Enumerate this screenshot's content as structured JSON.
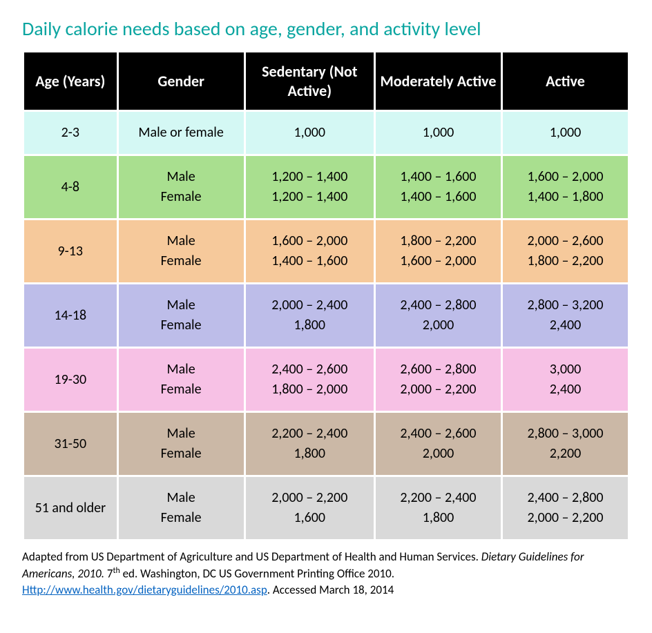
{
  "title": "Daily calorie needs based on age, gender, and activity level",
  "title_color": "#0aa5a0",
  "header_bg": "#000000",
  "header_text_color": "#ffffff",
  "columns": [
    "Age (Years)",
    "Gender",
    "Sedentary (Not Active)",
    "Moderately Active",
    "Active"
  ],
  "column_widths_pct": [
    15.5,
    21,
    21.5,
    21,
    21
  ],
  "rows": [
    {
      "bg": "#d4f8f4",
      "age": "2-3",
      "gender": [
        "Male or female"
      ],
      "sedentary": [
        "1,000"
      ],
      "moderate": [
        "1,000"
      ],
      "active": [
        "1,000"
      ]
    },
    {
      "bg": "#a9df8f",
      "age": "4-8",
      "gender": [
        "Male",
        "Female"
      ],
      "sedentary": [
        "1,200 – 1,400",
        "1,200 – 1,400"
      ],
      "moderate": [
        "1,400 – 1,600",
        "1,400 – 1,600"
      ],
      "active": [
        "1,600 – 2,000",
        "1,400 – 1,800"
      ]
    },
    {
      "bg": "#f6c99b",
      "age": "9-13",
      "gender": [
        "Male",
        "Female"
      ],
      "sedentary": [
        "1,600 – 2,000",
        "1,400 – 1,600"
      ],
      "moderate": [
        "1,800 – 2,200",
        "1,600 – 2,000"
      ],
      "active": [
        "2,000 – 2,600",
        "1,800 – 2,200"
      ]
    },
    {
      "bg": "#bdbde9",
      "age": "14-18",
      "gender": [
        "Male",
        "Female"
      ],
      "sedentary": [
        "2,000 – 2,400",
        "1,800"
      ],
      "moderate": [
        "2,400 – 2,800",
        "2,000"
      ],
      "active": [
        "2,800 – 3,200",
        "2,400"
      ]
    },
    {
      "bg": "#f7c1e5",
      "age": "19-30",
      "gender": [
        "Male",
        "Female"
      ],
      "sedentary": [
        "2,400 – 2,600",
        "1,800 – 2,000"
      ],
      "moderate": [
        "2,600 – 2,800",
        "2,000 – 2,200"
      ],
      "active": [
        "3,000",
        "2,400"
      ]
    },
    {
      "bg": "#cbb8a6",
      "age": "31-50",
      "gender": [
        "Male",
        "Female"
      ],
      "sedentary": [
        "2,200 – 2,400",
        "1,800"
      ],
      "moderate": [
        "2,400 – 2,600",
        "2,000"
      ],
      "active": [
        "2,800 – 3,000",
        "2,200"
      ]
    },
    {
      "bg": "#d9d9d9",
      "age": "51 and older",
      "gender": [
        "Male",
        "Female"
      ],
      "sedentary": [
        "2,000 – 2,200",
        "1,600"
      ],
      "moderate": [
        "2,200 – 2,400",
        "1,800"
      ],
      "active": [
        "2,400 – 2,800",
        "2,000 – 2,200"
      ]
    }
  ],
  "footnote": {
    "pre": "Adapted from US Department of Agriculture and US Department of Health and Human Services. ",
    "italic": "Dietary Guidelines for Americans, 2010.",
    "mid": " 7",
    "sup": "th",
    "post_sup": " ed. Washington, DC US Government Printing Office 2010. ",
    "link_text": "Http://www.health.gov/dietaryguidelines/2010.asp",
    "link_href": "http://www.health.gov/dietaryguidelines/2010.asp",
    "tail": ". Accessed March 18, 2014"
  }
}
